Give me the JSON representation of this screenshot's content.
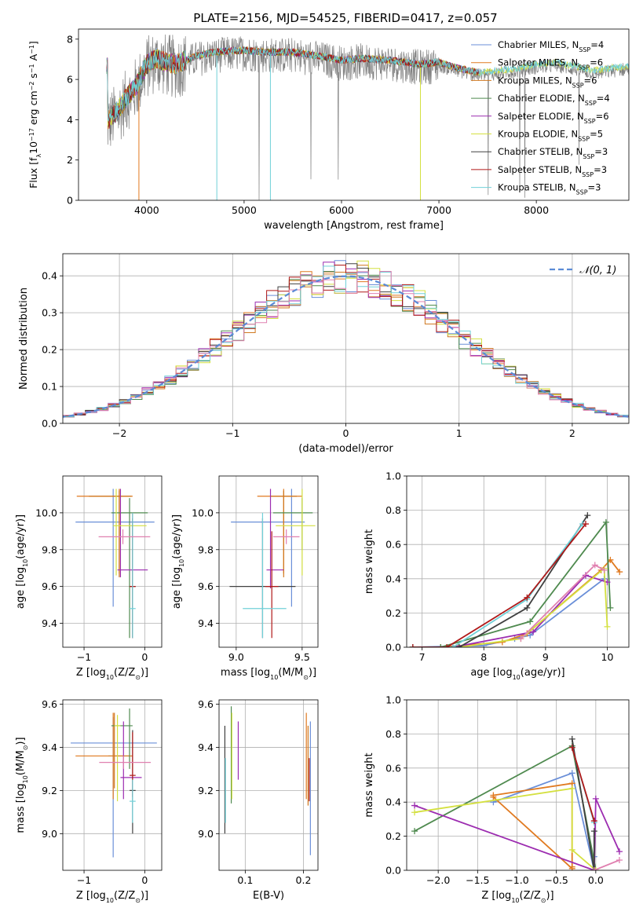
{
  "title": "PLATE=2156, MJD=54525, FIBERID=0417, z=0.057",
  "colors": {
    "chabrier_miles": "#6a8fd8",
    "salpeter_miles": "#e07a20",
    "kroupa_miles": "#d07820",
    "chabrier_elodie": "#4f8a4f",
    "salpeter_elodie": "#9c2cb0",
    "kroupa_elodie": "#d4e040",
    "chabrier_stelib": "#404040",
    "salpeter_stelib": "#b01818",
    "kroupa_stelib": "#70d0d8",
    "pink": "#e080b0",
    "data": "#808080"
  },
  "legend_spectrum": [
    {
      "name": "Chabrier MILES, N",
      "sub": "SSP",
      "tail": "=4",
      "color": "#6a8fd8"
    },
    {
      "name": "Salpeter MILES, N",
      "sub": "SSP",
      "tail": "=6",
      "color": "#e07a20"
    },
    {
      "name": "Kroupa MILES, N",
      "sub": "SSP",
      "tail": "=6",
      "color": "#d07820"
    },
    {
      "name": "Chabrier ELODIE, N",
      "sub": "SSP",
      "tail": "=4",
      "color": "#4f8a4f"
    },
    {
      "name": "Salpeter ELODIE, N",
      "sub": "SSP",
      "tail": "=6",
      "color": "#9c2cb0"
    },
    {
      "name": "Kroupa ELODIE, N",
      "sub": "SSP",
      "tail": "=5",
      "color": "#d4e040"
    },
    {
      "name": "Chabrier STELIB, N",
      "sub": "SSP",
      "tail": "=3",
      "color": "#404040"
    },
    {
      "name": "Salpeter STELIB, N",
      "sub": "SSP",
      "tail": "=3",
      "color": "#b01818"
    },
    {
      "name": "Kroupa STELIB, N",
      "sub": "SSP",
      "tail": "=3",
      "color": "#70d0d8"
    }
  ],
  "chart_data": [
    {
      "id": "spectrum",
      "type": "line",
      "xlabel": "wavelength [Angstrom, rest frame]",
      "ylabel_parts": [
        "Flux [f",
        "λ",
        "10",
        "−17",
        " erg cm",
        "−2",
        " s",
        "−1",
        " A",
        "−1",
        "]"
      ],
      "xlim": [
        3300,
        8950
      ],
      "ylim": [
        0,
        8.5
      ],
      "xticks": [
        4000,
        5000,
        6000,
        7000,
        8000
      ],
      "yticks": [
        0,
        2,
        4,
        6,
        8
      ],
      "grid": false,
      "legend": "right",
      "model_anchor_x": [
        3600,
        3700,
        3800,
        3900,
        4000,
        4100,
        4200,
        4300,
        4500,
        4700,
        5000,
        5200,
        5500,
        5800,
        6000,
        6200,
        6500,
        6800,
        7000,
        7200,
        7400,
        7600,
        7800,
        8000,
        8200,
        8400,
        8600,
        8900
      ],
      "model_anchor_y": [
        3.8,
        4.3,
        5.0,
        5.6,
        6.6,
        6.9,
        6.7,
        6.6,
        7.0,
        7.2,
        7.3,
        7.2,
        7.2,
        7.0,
        6.8,
        6.9,
        6.8,
        6.6,
        6.7,
        6.4,
        6.2,
        6.3,
        6.4,
        6.6,
        6.7,
        6.5,
        6.3,
        6.5
      ]
    },
    {
      "id": "residuals",
      "type": "histogram",
      "xlabel": "(data-model)/error",
      "ylabel": "Normed distribution",
      "xlim": [
        -2.5,
        2.5
      ],
      "ylim": [
        0,
        0.46
      ],
      "xticks": [
        -2,
        -1,
        0,
        1,
        2
      ],
      "yticks": [
        0.0,
        0.1,
        0.2,
        0.3,
        0.4
      ],
      "grid": true,
      "legend": "top-right",
      "legend_label": "𝒩(0, 1)"
    },
    {
      "id": "age_vs_Z",
      "type": "errorbar",
      "xlabel_parts": [
        "Z [log",
        "10",
        "(Z/Z",
        "⊙",
        ")]"
      ],
      "ylabel_parts": [
        "age  [log",
        "10",
        "(age/yr)]"
      ],
      "xlim": [
        -1.35,
        0.28
      ],
      "ylim": [
        9.27,
        10.2
      ],
      "xticks": [
        -1,
        0
      ],
      "yticks": [
        9.4,
        9.6,
        9.8,
        10.0
      ],
      "grid": true,
      "points": [
        {
          "x": -0.52,
          "y": 9.95,
          "xe": [
            0.62,
            0.68
          ],
          "ye": [
            0.46,
            0.18
          ],
          "c": "chabrier_miles"
        },
        {
          "x": -0.42,
          "y": 10.09,
          "xe": [
            0.7,
            0.22
          ],
          "ye": [
            0.42,
            0.04
          ],
          "c": "salpeter_miles"
        },
        {
          "x": -0.42,
          "y": 10.09,
          "xe": [
            0.5,
            0.2
          ],
          "ye": [
            0.44,
            0.03
          ],
          "c": "kroupa_miles"
        },
        {
          "x": -0.25,
          "y": 10.0,
          "xe": [
            0.3,
            0.3
          ],
          "ye": [
            0.68,
            0.08
          ],
          "c": "chabrier_elodie"
        },
        {
          "x": -0.4,
          "y": 9.69,
          "xe": [
            0.05,
            0.45
          ],
          "ye": [
            0.04,
            0.44
          ],
          "c": "salpeter_elodie"
        },
        {
          "x": -0.47,
          "y": 9.93,
          "xe": [
            0.05,
            0.5
          ],
          "ye": [
            0.27,
            0.2
          ],
          "c": "kroupa_elodie"
        },
        {
          "x": -0.2,
          "y": 9.6,
          "xe": [
            0.05,
            0.05
          ],
          "ye": [
            0.28,
            0.37
          ],
          "c": "chabrier_stelib"
        },
        {
          "x": -0.2,
          "y": 9.6,
          "xe": [
            0.05,
            0.05
          ],
          "ye": [
            0.28,
            0.4
          ],
          "c": "salpeter_stelib"
        },
        {
          "x": -0.2,
          "y": 9.48,
          "xe": [
            0.05,
            0.05
          ],
          "ye": [
            0.16,
            0.52
          ],
          "c": "kroupa_stelib"
        },
        {
          "x": -0.36,
          "y": 9.87,
          "xe": [
            0.4,
            0.45
          ],
          "ye": [
            0.04,
            0.04
          ],
          "c": "pink"
        }
      ]
    },
    {
      "id": "age_vs_mass",
      "type": "errorbar",
      "xlabel_parts": [
        "mass [log",
        "10",
        "(M/M",
        "⊙",
        ")]"
      ],
      "ylabel_parts": [
        "age  [log",
        "10",
        "(age/yr)]"
      ],
      "xlim": [
        8.87,
        9.62
      ],
      "ylim": [
        9.27,
        10.2
      ],
      "xticks": [
        9.0,
        9.5
      ],
      "yticks": [
        9.4,
        9.6,
        9.8,
        10.0
      ],
      "grid": true,
      "points": [
        {
          "x": 9.42,
          "y": 9.95,
          "xe": [
            0.46,
            0.1
          ],
          "ye": [
            0.46,
            0.18
          ],
          "c": "chabrier_miles"
        },
        {
          "x": 9.36,
          "y": 10.09,
          "xe": [
            0.2,
            0.14
          ],
          "ye": [
            0.42,
            0.04
          ],
          "c": "salpeter_miles"
        },
        {
          "x": 9.36,
          "y": 10.09,
          "xe": [
            0.1,
            0.1
          ],
          "ye": [
            0.44,
            0.03
          ],
          "c": "kroupa_miles"
        },
        {
          "x": 9.5,
          "y": 10.0,
          "xe": [
            0.22,
            0.08
          ],
          "ye": [
            0.2,
            0.08
          ],
          "c": "chabrier_elodie"
        },
        {
          "x": 9.26,
          "y": 9.69,
          "xe": [
            0.03,
            0.1
          ],
          "ye": [
            0.1,
            0.44
          ],
          "c": "salpeter_elodie"
        },
        {
          "x": 9.5,
          "y": 9.93,
          "xe": [
            0.2,
            0.1
          ],
          "ye": [
            0.27,
            0.2
          ],
          "c": "kroupa_elodie"
        },
        {
          "x": 9.2,
          "y": 9.6,
          "xe": [
            0.25,
            0.25
          ],
          "ye": [
            0.28,
            0.37
          ],
          "c": "chabrier_stelib"
        },
        {
          "x": 9.27,
          "y": 9.6,
          "xe": [
            0.05,
            0.05
          ],
          "ye": [
            0.28,
            0.3
          ],
          "c": "salpeter_stelib"
        },
        {
          "x": 9.2,
          "y": 9.48,
          "xe": [
            0.15,
            0.18
          ],
          "ye": [
            0.16,
            0.52
          ],
          "c": "kroupa_stelib"
        },
        {
          "x": 9.38,
          "y": 9.87,
          "xe": [
            0.1,
            0.1
          ],
          "ye": [
            0.04,
            0.04
          ],
          "c": "pink"
        }
      ]
    },
    {
      "id": "weight_vs_age",
      "type": "line",
      "xlabel_parts": [
        "age  [log",
        "10",
        "(age/yr)]"
      ],
      "ylabel": "mass weight",
      "xlim": [
        6.75,
        10.35
      ],
      "ylim": [
        0,
        1.0
      ],
      "xticks": [
        7,
        8,
        9,
        10
      ],
      "yticks": [
        0.0,
        0.2,
        0.4,
        0.6,
        0.8,
        1.0
      ],
      "grid": true,
      "series": [
        {
          "c": "chabrier_miles",
          "x": [
            6.85,
            8.0,
            8.5,
            8.75,
            9.95
          ],
          "y": [
            0.0,
            0.01,
            0.05,
            0.07,
            0.4
          ]
        },
        {
          "c": "salpeter_miles",
          "x": [
            6.85,
            7.3,
            8.3,
            8.7,
            9.9,
            10.05,
            10.2
          ],
          "y": [
            0.0,
            0.0,
            0.03,
            0.08,
            0.45,
            0.51,
            0.44
          ]
        },
        {
          "c": "chabrier_elodie",
          "x": [
            6.85,
            7.3,
            8.75,
            9.98,
            10.05
          ],
          "y": [
            0.0,
            0.0,
            0.15,
            0.73,
            0.23
          ]
        },
        {
          "c": "salpeter_elodie",
          "x": [
            6.85,
            7.5,
            8.8,
            9.65,
            10.0
          ],
          "y": [
            0.0,
            0.0,
            0.09,
            0.42,
            0.38
          ]
        },
        {
          "c": "kroupa_elodie",
          "x": [
            6.85,
            7.6,
            8.6,
            9.95,
            10.0
          ],
          "y": [
            0.0,
            0.0,
            0.05,
            0.46,
            0.12
          ]
        },
        {
          "c": "chabrier_stelib",
          "x": [
            6.85,
            7.6,
            8.7,
            9.68
          ],
          "y": [
            0.0,
            0.0,
            0.23,
            0.77
          ]
        },
        {
          "c": "kroupa_stelib",
          "x": [
            6.85,
            7.5,
            8.7,
            9.6
          ],
          "y": [
            0.0,
            0.0,
            0.28,
            0.72
          ]
        },
        {
          "c": "salpeter_stelib",
          "x": [
            6.85,
            7.4,
            8.7,
            9.65
          ],
          "y": [
            0.0,
            0.0,
            0.29,
            0.72
          ]
        },
        {
          "c": "pink",
          "x": [
            8.6,
            9.8,
            9.95
          ],
          "y": [
            0.05,
            0.48,
            0.45
          ]
        }
      ]
    },
    {
      "id": "mass_vs_Z",
      "type": "errorbar",
      "xlabel_parts": [
        "Z [log",
        "10",
        "(Z/Z",
        "⊙",
        ")]"
      ],
      "ylabel_parts": [
        "mass [log",
        "10",
        "(M/M",
        "⊙",
        ")]"
      ],
      "xlim": [
        -1.35,
        0.28
      ],
      "ylim": [
        8.83,
        9.62
      ],
      "xticks": [
        -1,
        0
      ],
      "yticks": [
        9.0,
        9.2,
        9.4,
        9.6
      ],
      "grid": true,
      "points": [
        {
          "x": -0.52,
          "y": 9.42,
          "xe": [
            0.7,
            0.72
          ],
          "ye": [
            0.53,
            0.12
          ],
          "c": "chabrier_miles"
        },
        {
          "x": -0.52,
          "y": 9.36,
          "xe": [
            0.62,
            0.32
          ],
          "ye": [
            0.2,
            0.2
          ],
          "c": "salpeter_miles"
        },
        {
          "x": -0.5,
          "y": 9.36,
          "xe": [
            0.1,
            0.25
          ],
          "ye": [
            0.15,
            0.2
          ],
          "c": "kroupa_miles"
        },
        {
          "x": -0.25,
          "y": 9.5,
          "xe": [
            0.3,
            0.05
          ],
          "ye": [
            0.2,
            0.08
          ],
          "c": "chabrier_elodie"
        },
        {
          "x": -0.35,
          "y": 9.26,
          "xe": [
            0.05,
            0.3
          ],
          "ye": [
            0.1,
            0.26
          ],
          "c": "salpeter_elodie"
        },
        {
          "x": -0.45,
          "y": 9.5,
          "xe": [
            0.05,
            0.05
          ],
          "ye": [
            0.35,
            0.05
          ],
          "c": "kroupa_elodie"
        },
        {
          "x": -0.2,
          "y": 9.2,
          "xe": [
            0.05,
            0.05
          ],
          "ye": [
            0.2,
            0.28
          ],
          "c": "chabrier_stelib"
        },
        {
          "x": -0.2,
          "y": 9.27,
          "xe": [
            0.05,
            0.05
          ],
          "ye": [
            0.1,
            0.2
          ],
          "c": "salpeter_stelib"
        },
        {
          "x": -0.2,
          "y": 9.15,
          "xe": [
            0.05,
            0.05
          ],
          "ye": [
            0.1,
            0.1
          ],
          "c": "kroupa_stelib"
        },
        {
          "x": -0.35,
          "y": 9.33,
          "xe": [
            0.4,
            0.45
          ],
          "ye": [
            0.03,
            0.03
          ],
          "c": "pink"
        }
      ]
    },
    {
      "id": "mass_vs_ebv",
      "type": "errorbar",
      "xlabel": "E(B-V)",
      "xlim": [
        0.055,
        0.225
      ],
      "ylim": [
        8.83,
        9.62
      ],
      "xticks": [
        0.1,
        0.2
      ],
      "yticks": [
        9.0,
        9.2,
        9.4,
        9.6
      ],
      "grid": true,
      "points": [
        {
          "x": 0.065,
          "y": 9.3,
          "xe": [
            0,
            0
          ],
          "ye": [
            0.3,
            0.2
          ],
          "c": "chabrier_stelib"
        },
        {
          "x": 0.066,
          "y": 9.25,
          "xe": [
            0,
            0
          ],
          "ye": [
            0.2,
            0.1
          ],
          "c": "kroupa_stelib"
        },
        {
          "x": 0.076,
          "y": 9.36,
          "xe": [
            0,
            0
          ],
          "ye": [
            0.22,
            0.23
          ],
          "c": "chabrier_elodie"
        },
        {
          "x": 0.077,
          "y": 9.36,
          "xe": [
            0,
            0
          ],
          "ye": [
            0.2,
            0.2
          ],
          "c": "kroupa_elodie"
        },
        {
          "x": 0.088,
          "y": 9.35,
          "xe": [
            0,
            0
          ],
          "ye": [
            0.1,
            0.17
          ],
          "c": "salpeter_elodie"
        },
        {
          "x": 0.205,
          "y": 9.36,
          "xe": [
            0,
            0
          ],
          "ye": [
            0.2,
            0.2
          ],
          "c": "salpeter_miles"
        },
        {
          "x": 0.208,
          "y": 9.33,
          "xe": [
            0,
            0
          ],
          "ye": [
            0.2,
            0.17
          ],
          "c": "kroupa_miles"
        },
        {
          "x": 0.212,
          "y": 9.2,
          "xe": [
            0,
            0
          ],
          "ye": [
            0.3,
            0.32
          ],
          "c": "chabrier_miles"
        },
        {
          "x": 0.21,
          "y": 9.25,
          "xe": [
            0,
            0
          ],
          "ye": [
            0.1,
            0.1
          ],
          "c": "salpeter_stelib"
        }
      ]
    },
    {
      "id": "weight_vs_Z",
      "type": "line",
      "xlabel_parts": [
        "Z [log",
        "10",
        "(Z/Z",
        "⊙",
        ")]"
      ],
      "ylabel": "mass weight",
      "xlim": [
        -2.4,
        0.42
      ],
      "ylim": [
        0,
        1.0
      ],
      "xticks": [
        -2.0,
        -1.5,
        -1.0,
        -0.5,
        0.0
      ],
      "yticks": [
        0.0,
        0.2,
        0.4,
        0.6,
        0.8,
        1.0
      ],
      "grid": true,
      "series": [
        {
          "c": "chabrier_miles",
          "x": [
            -1.3,
            -0.3,
            -0.02,
            -0.02
          ],
          "y": [
            0.4,
            0.57,
            0.0,
            0.08
          ]
        },
        {
          "c": "salpeter_miles",
          "x": [
            -1.3,
            -0.3,
            -0.3
          ],
          "y": [
            0.44,
            0.51,
            0.02
          ]
        },
        {
          "c": "salpeter_miles",
          "x": [
            -1.3,
            -0.3
          ],
          "y": [
            0.43,
            0.01
          ]
        },
        {
          "c": "chabrier_elodie",
          "x": [
            -2.3,
            -0.3,
            0.0
          ],
          "y": [
            0.23,
            0.73,
            0.0
          ]
        },
        {
          "c": "salpeter_elodie",
          "x": [
            -2.3,
            -0.02,
            0.0,
            0.3
          ],
          "y": [
            0.38,
            0.0,
            0.42,
            0.11
          ]
        },
        {
          "c": "kroupa_elodie",
          "x": [
            -2.3,
            -0.3,
            -0.3,
            0.0
          ],
          "y": [
            0.34,
            0.48,
            0.12,
            0.0
          ]
        },
        {
          "c": "chabrier_stelib",
          "x": [
            -0.3,
            -0.02,
            -0.02
          ],
          "y": [
            0.77,
            0.0,
            0.23
          ]
        },
        {
          "c": "kroupa_stelib",
          "x": [
            -0.3,
            -0.02
          ],
          "y": [
            0.72,
            0.28
          ]
        },
        {
          "c": "salpeter_stelib",
          "x": [
            -0.3,
            -0.02
          ],
          "y": [
            0.72,
            0.29
          ]
        },
        {
          "c": "pink",
          "x": [
            -0.02,
            0.3
          ],
          "y": [
            0.0,
            0.06
          ]
        }
      ]
    }
  ]
}
